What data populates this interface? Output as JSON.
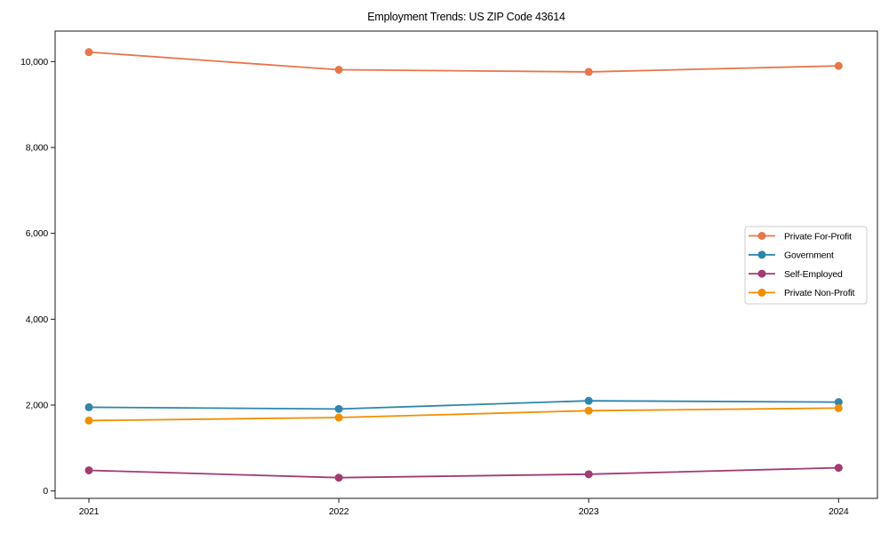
{
  "page": {
    "background": "#ffffff",
    "axis_color": "#1a1a1a",
    "tick_label_color": "#000000",
    "legend_border_color": "#cccccc",
    "legend_background": "#ffffff"
  },
  "chart_data": {
    "type": "line",
    "title": "Employment Trends: US ZIP Code 43614",
    "xlabel": "",
    "ylabel": "",
    "categories": [
      "2021",
      "2022",
      "2023",
      "2024"
    ],
    "y_ticks": [
      0,
      2000,
      4000,
      6000,
      8000,
      10000
    ],
    "y_tick_labels": [
      "0",
      "2,000",
      "4,000",
      "6,000",
      "8,000",
      "10,000"
    ],
    "ylim": [
      -172,
      10710
    ],
    "grid": false,
    "legend_position": "right",
    "series": [
      {
        "name": "Private For-Profit",
        "color": "#E8764B",
        "values": [
          10220,
          9810,
          9760,
          9900
        ]
      },
      {
        "name": "Government",
        "color": "#2E86AB",
        "values": [
          1950,
          1910,
          2100,
          2070
        ]
      },
      {
        "name": "Self-Employed",
        "color": "#A23B72",
        "values": [
          480,
          310,
          390,
          540
        ]
      },
      {
        "name": "Private Non-Profit",
        "color": "#F18F01",
        "values": [
          1640,
          1710,
          1870,
          1930
        ]
      }
    ]
  }
}
